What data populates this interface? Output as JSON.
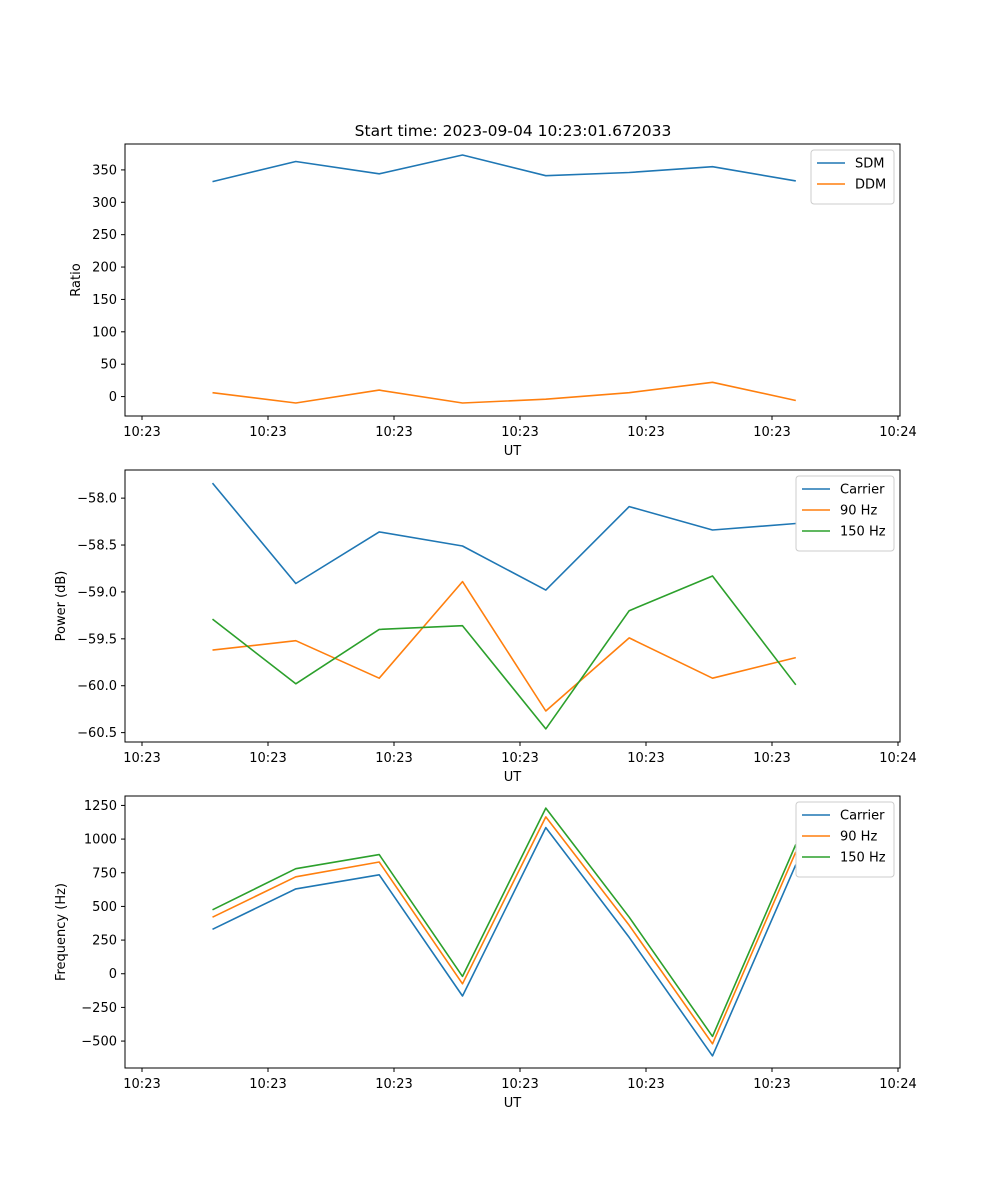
{
  "title": "Start time: 2023-09-04 10:23:01.672033",
  "chart_data": [
    {
      "type": "line",
      "xlabel": "UT",
      "ylabel": "Ratio",
      "ylim": [
        -30,
        390
      ],
      "yticks": [
        0,
        50,
        100,
        150,
        200,
        250,
        300,
        350
      ],
      "xlim": [
        -0.3,
        9.0
      ],
      "xtick_positions": [
        0,
        1.53,
        3.06,
        4.59,
        6.12,
        7.65,
        9.18
      ],
      "xtick_labels": [
        "10:23",
        "10:23",
        "10:23",
        "10:23",
        "10:23",
        "10:23",
        "10:24"
      ],
      "x": [
        0.75,
        1.75,
        2.75,
        3.75,
        4.75,
        5.75,
        6.75,
        7.75
      ],
      "legend_loc": "upper right",
      "series": [
        {
          "name": "SDM",
          "color": "#1f77b4",
          "values": [
            332,
            363,
            344,
            373,
            341,
            346,
            355,
            333
          ]
        },
        {
          "name": "DDM",
          "color": "#ff7f0e",
          "values": [
            6,
            -10,
            10,
            -10,
            -4,
            6,
            22,
            -6
          ]
        }
      ]
    },
    {
      "type": "line",
      "xlabel": "UT",
      "ylabel": "Power (dB)",
      "ylim": [
        -60.6,
        -57.7
      ],
      "yticks": [
        -60.5,
        -60.0,
        -59.5,
        -59.0,
        -58.5,
        -58.0
      ],
      "ytick_labels": [
        "−60.5",
        "−60.0",
        "−59.5",
        "−59.0",
        "−58.5",
        "−58.0"
      ],
      "xlim": [
        -0.3,
        9.0
      ],
      "xtick_positions": [
        0,
        1.53,
        3.06,
        4.59,
        6.12,
        7.65,
        9.18
      ],
      "xtick_labels": [
        "10:23",
        "10:23",
        "10:23",
        "10:23",
        "10:23",
        "10:23",
        "10:24"
      ],
      "x": [
        0.75,
        1.75,
        2.75,
        3.75,
        4.75,
        5.75,
        6.75,
        7.75
      ],
      "legend_loc": "upper right",
      "series": [
        {
          "name": "Carrier",
          "color": "#1f77b4",
          "values": [
            -57.84,
            -58.91,
            -58.36,
            -58.51,
            -58.98,
            -58.09,
            -58.34,
            -58.27
          ]
        },
        {
          "name": "90 Hz",
          "color": "#ff7f0e",
          "values": [
            -59.62,
            -59.52,
            -59.92,
            -58.89,
            -60.27,
            -59.49,
            -59.92,
            -59.7
          ]
        },
        {
          "name": "150 Hz",
          "color": "#2ca02c",
          "values": [
            -59.29,
            -59.98,
            -59.4,
            -59.36,
            -60.46,
            -59.2,
            -58.83,
            -59.99
          ]
        }
      ]
    },
    {
      "type": "line",
      "xlabel": "UT",
      "ylabel": "Frequency (Hz)",
      "ylim": [
        -700,
        1320
      ],
      "yticks": [
        -500,
        -250,
        0,
        250,
        500,
        750,
        1000,
        1250
      ],
      "ytick_labels": [
        "−500",
        "−250",
        "0",
        "250",
        "500",
        "750",
        "1000",
        "1250"
      ],
      "xlim": [
        -0.3,
        9.0
      ],
      "xtick_positions": [
        0,
        1.53,
        3.06,
        4.59,
        6.12,
        7.65,
        9.18
      ],
      "xtick_labels": [
        "10:23",
        "10:23",
        "10:23",
        "10:23",
        "10:23",
        "10:23",
        "10:24"
      ],
      "x": [
        0.75,
        1.75,
        2.75,
        3.75,
        4.75,
        5.75,
        6.75,
        7.75
      ],
      "legend_loc": "upper right",
      "series": [
        {
          "name": "Carrier",
          "color": "#1f77b4",
          "values": [
            330,
            630,
            735,
            -165,
            1085,
            270,
            -610,
            810
          ]
        },
        {
          "name": "90 Hz",
          "color": "#ff7f0e",
          "values": [
            420,
            720,
            830,
            -75,
            1165,
            360,
            -520,
            905
          ]
        },
        {
          "name": "150 Hz",
          "color": "#2ca02c",
          "values": [
            475,
            780,
            885,
            -20,
            1230,
            420,
            -465,
            960
          ]
        }
      ]
    }
  ]
}
